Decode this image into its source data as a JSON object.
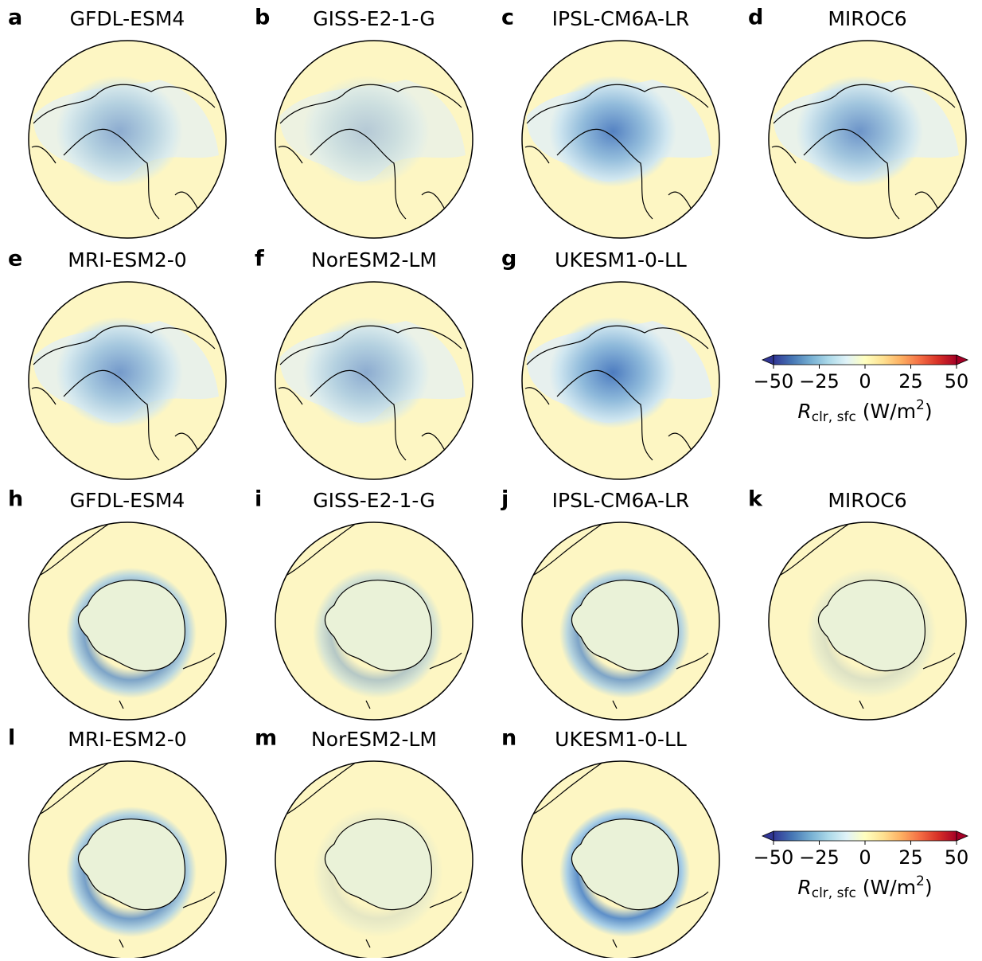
{
  "panels": [
    {
      "letter": "a",
      "title": "GFDL-ESM4"
    },
    {
      "letter": "b",
      "title": "GISS-E2-1-G"
    },
    {
      "letter": "c",
      "title": "IPSL-CM6A-LR"
    },
    {
      "letter": "d",
      "title": "MIROC6"
    },
    {
      "letter": "e",
      "title": "MRI-ESM2-0"
    },
    {
      "letter": "f",
      "title": "NorESM2-LM"
    },
    {
      "letter": "g",
      "title": "UKESM1-0-LL"
    },
    {
      "letter": "h",
      "title": "GFDL-ESM4"
    },
    {
      "letter": "i",
      "title": "GISS-E2-1-G"
    },
    {
      "letter": "j",
      "title": "IPSL-CM6A-LR"
    },
    {
      "letter": "k",
      "title": "MIROC6"
    },
    {
      "letter": "l",
      "title": "MRI-ESM2-0"
    },
    {
      "letter": "m",
      "title": "NorESM2-LM"
    },
    {
      "letter": "n",
      "title": "UKESM1-0-LL"
    }
  ],
  "colorbars": [
    {
      "lim": [
        -50,
        50
      ],
      "ticks": [
        {
          "value": -50,
          "label": "−50"
        },
        {
          "value": -25,
          "label": "−25"
        },
        0,
        25,
        50
      ],
      "label": {
        "symbol": "R",
        "subscript": "clr, sfc",
        "unit": "(W/m",
        "superscript": "2",
        "close": ")"
      }
    },
    {
      "lim": [
        -50,
        50
      ],
      "ticks": [
        {
          "value": -50,
          "label": "−50"
        },
        {
          "value": -25,
          "label": "−25"
        },
        0,
        25,
        50
      ],
      "label": {
        "symbol": "R",
        "subscript": "clr, sfc",
        "unit": "(W/m",
        "superscript": "2",
        "close": ")"
      }
    }
  ]
}
